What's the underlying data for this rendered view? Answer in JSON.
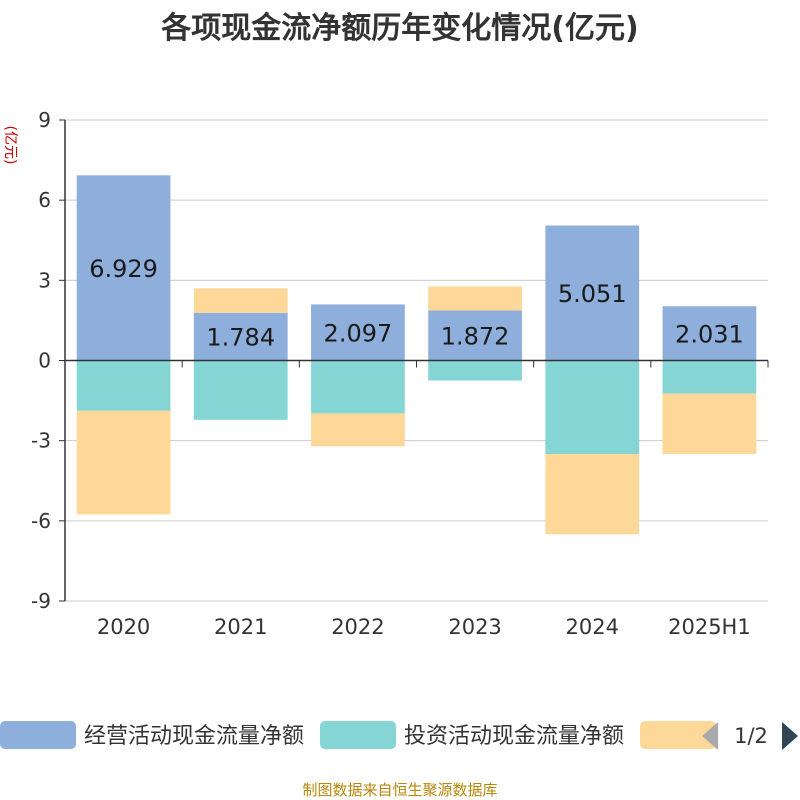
{
  "chart_data": {
    "type": "bar",
    "stacked": true,
    "title": "各项现金流净额历年变化情况(亿元)",
    "ylabel": "(亿元)",
    "ylim": [
      -9,
      9
    ],
    "yticks": [
      9,
      6,
      3,
      0,
      -3,
      -6,
      -9
    ],
    "categories": [
      "2020",
      "2021",
      "2022",
      "2023",
      "2024",
      "2025H1"
    ],
    "series": [
      {
        "name": "经营活动现金流量净额",
        "color": "#8eaedb",
        "values": [
          6.929,
          1.784,
          2.097,
          1.872,
          5.051,
          2.031
        ],
        "labels": [
          "6.929",
          "1.784",
          "2.097",
          "1.872",
          "5.051",
          "2.031"
        ]
      },
      {
        "name": "投资活动现金流量净额",
        "color": "#86d5d5",
        "values": [
          -1.88,
          -2.22,
          -1.98,
          -0.75,
          -3.5,
          -1.24
        ]
      },
      {
        "name": "",
        "color": "#fdd899",
        "values": [
          -3.88,
          0.92,
          -1.23,
          0.9,
          -3.0,
          -2.26
        ]
      }
    ],
    "grid": true,
    "legend": "bottom",
    "legend_page": "1/2"
  },
  "footer": "制图数据来自恒生聚源数据库"
}
